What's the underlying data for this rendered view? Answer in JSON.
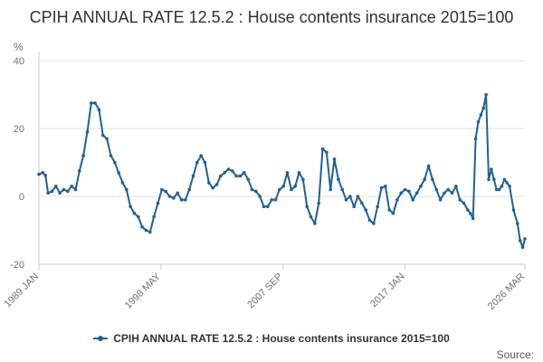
{
  "chart_data": {
    "type": "line",
    "title": "CPIH ANNUAL RATE 12.5.2 : House contents insurance 2015=100",
    "ylabel": "%",
    "ylim": [
      -20,
      40
    ],
    "yticks": [
      40,
      20,
      0,
      -20
    ],
    "xlim": [
      1989.0,
      2026.167
    ],
    "xtick_labels": [
      "1989 JAN",
      "1998 MAY",
      "2007 SEP",
      "2017 JAN",
      "2026 MAR"
    ],
    "xtick_values": [
      1989.0,
      1998.333,
      2007.667,
      2017.0,
      2026.167
    ],
    "grid": true,
    "legend_position": "bottom",
    "series": [
      {
        "name": "CPIH ANNUAL RATE 12.5.2 : House contents insurance 2015=100",
        "color": "#206095",
        "x": [
          1989.0,
          1989.3,
          1989.5,
          1989.7,
          1990.0,
          1990.3,
          1990.6,
          1990.9,
          1991.2,
          1991.5,
          1991.8,
          1992.1,
          1992.4,
          1992.7,
          1993.0,
          1993.3,
          1993.6,
          1993.9,
          1994.2,
          1994.5,
          1994.8,
          1995.1,
          1995.4,
          1995.7,
          1996.0,
          1996.3,
          1996.6,
          1996.9,
          1997.2,
          1997.5,
          1997.8,
          1998.1,
          1998.4,
          1998.7,
          1999.0,
          1999.3,
          1999.6,
          1999.9,
          2000.2,
          2000.5,
          2000.8,
          2001.1,
          2001.4,
          2001.7,
          2002.0,
          2002.3,
          2002.6,
          2002.9,
          2003.2,
          2003.5,
          2003.8,
          2004.1,
          2004.4,
          2004.7,
          2005.0,
          2005.3,
          2005.6,
          2005.9,
          2006.2,
          2006.5,
          2006.8,
          2007.1,
          2007.4,
          2007.7,
          2008.0,
          2008.3,
          2008.6,
          2008.9,
          2009.2,
          2009.5,
          2009.8,
          2010.1,
          2010.4,
          2010.7,
          2011.0,
          2011.3,
          2011.6,
          2011.9,
          2012.2,
          2012.5,
          2012.8,
          2013.1,
          2013.4,
          2013.7,
          2014.0,
          2014.3,
          2014.6,
          2014.9,
          2015.2,
          2015.5,
          2015.8,
          2016.1,
          2016.4,
          2016.7,
          2017.0,
          2017.3,
          2017.6,
          2017.9,
          2018.2,
          2018.5,
          2018.8,
          2019.1,
          2019.4,
          2019.7,
          2020.0,
          2020.3,
          2020.6,
          2020.9,
          2021.2,
          2021.5,
          2021.8,
          2022.0,
          2022.2,
          2022.4,
          2022.6,
          2022.8,
          2023.0,
          2023.2,
          2023.4,
          2023.6,
          2023.8,
          2024.0,
          2024.2,
          2024.4,
          2024.6,
          2024.8,
          2025.0,
          2025.3,
          2025.6,
          2025.8,
          2026.0,
          2026.167
        ],
        "values": [
          6.5,
          7,
          6.2,
          1,
          1.5,
          3,
          1,
          2,
          1.5,
          3,
          2,
          7.5,
          12,
          19,
          27.5,
          27.5,
          25.5,
          18,
          17,
          12,
          10,
          7,
          4,
          2,
          -3,
          -5,
          -6,
          -9,
          -10,
          -10.5,
          -6,
          -2,
          2,
          1.5,
          0,
          -0.5,
          1,
          -1,
          -1,
          2,
          6,
          10,
          12,
          10,
          4,
          2.5,
          3.5,
          6,
          7,
          8,
          7.5,
          6,
          6,
          7,
          5,
          2,
          1.5,
          0,
          -3,
          -3,
          -1,
          -1,
          2,
          3,
          7,
          2,
          3,
          7,
          5,
          -3,
          -6,
          -8,
          -2,
          14,
          13,
          2,
          11,
          5,
          2,
          -1,
          0,
          -3,
          0,
          -2,
          -4,
          -7,
          -8,
          -3,
          2.5,
          3,
          -4,
          -5,
          -1,
          1,
          2,
          1.5,
          -1,
          1,
          3,
          5,
          9,
          5,
          2,
          -1,
          1,
          2,
          1,
          3,
          -1,
          -2,
          -4,
          -5,
          -6.5,
          17,
          22,
          24,
          26,
          30,
          5,
          8,
          5,
          2,
          2,
          3,
          5,
          4,
          3,
          -4,
          -8,
          -13,
          -15,
          -12.5
        ]
      }
    ]
  },
  "legend": {
    "label": "CPIH ANNUAL RATE 12.5.2 : House contents insurance 2015=100"
  },
  "footer": {
    "source_label": "Source:"
  },
  "colors": {
    "series": "#206095",
    "grid": "#e0e0e0",
    "axis": "#cccccc",
    "text": "#707070"
  }
}
